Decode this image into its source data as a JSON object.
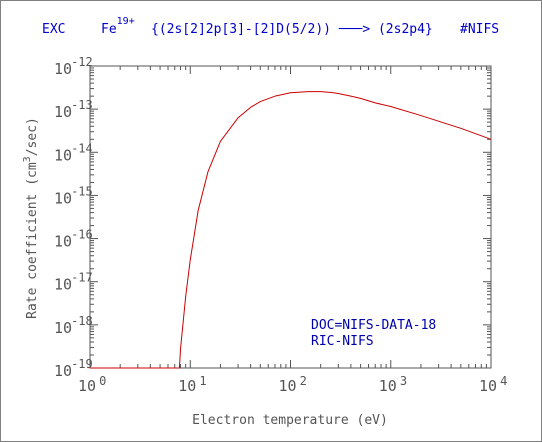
{
  "header": {
    "process": "EXC",
    "ion_base": "Fe",
    "ion_charge": "19+",
    "transition": "{(2s[2]2p[3]-[2]D(5/2)) ───> (2s2p4}",
    "database": "#NIFS"
  },
  "annotations": {
    "line1": "DOC=NIFS-DATA-18",
    "line2": "RIC-NIFS"
  },
  "colors": {
    "curve": "#cc0000",
    "header_text": "#0000cc",
    "annotation_text": "#0000aa",
    "axis": "#555555"
  },
  "chart_data": {
    "type": "line",
    "title": "",
    "xlabel": "Electron temperature (eV)",
    "ylabel_prefix": "Rate coefficient (cm",
    "ylabel_sup": "3",
    "ylabel_suffix": "/sec)",
    "x_scale": "log",
    "y_scale": "log",
    "xlim": [
      1,
      10000
    ],
    "ylim": [
      1e-19,
      1e-12
    ],
    "x_ticks": [
      {
        "base": "10",
        "exp": "0"
      },
      {
        "base": "10",
        "exp": "1"
      },
      {
        "base": "10",
        "exp": "2"
      },
      {
        "base": "10",
        "exp": "3"
      },
      {
        "base": "10",
        "exp": "4"
      }
    ],
    "y_ticks": [
      {
        "base": "10",
        "exp": "-19"
      },
      {
        "base": "10",
        "exp": "-18"
      },
      {
        "base": "10",
        "exp": "-17"
      },
      {
        "base": "10",
        "exp": "-16"
      },
      {
        "base": "10",
        "exp": "-15"
      },
      {
        "base": "10",
        "exp": "-14"
      },
      {
        "base": "10",
        "exp": "-13"
      },
      {
        "base": "10",
        "exp": "-12"
      }
    ],
    "grid": false,
    "series": [
      {
        "x": [
          1,
          7.8,
          8,
          9,
          10,
          12,
          15,
          20,
          30,
          40,
          50,
          70,
          100,
          150,
          200,
          250,
          300,
          400,
          500,
          700,
          1000,
          2000,
          5000,
          10000
        ],
        "y": [
          1e-19,
          1e-19,
          2.8e-19,
          4.5e-18,
          3.2e-17,
          4.5e-16,
          3.5e-15,
          1.8e-14,
          6.3e-14,
          1.1e-13,
          1.5e-13,
          2e-13,
          2.4e-13,
          2.55e-13,
          2.55e-13,
          2.45e-13,
          2.3e-13,
          2e-13,
          1.78e-13,
          1.4e-13,
          1.15e-13,
          7.1e-14,
          3.6e-14,
          2e-14
        ]
      }
    ]
  }
}
